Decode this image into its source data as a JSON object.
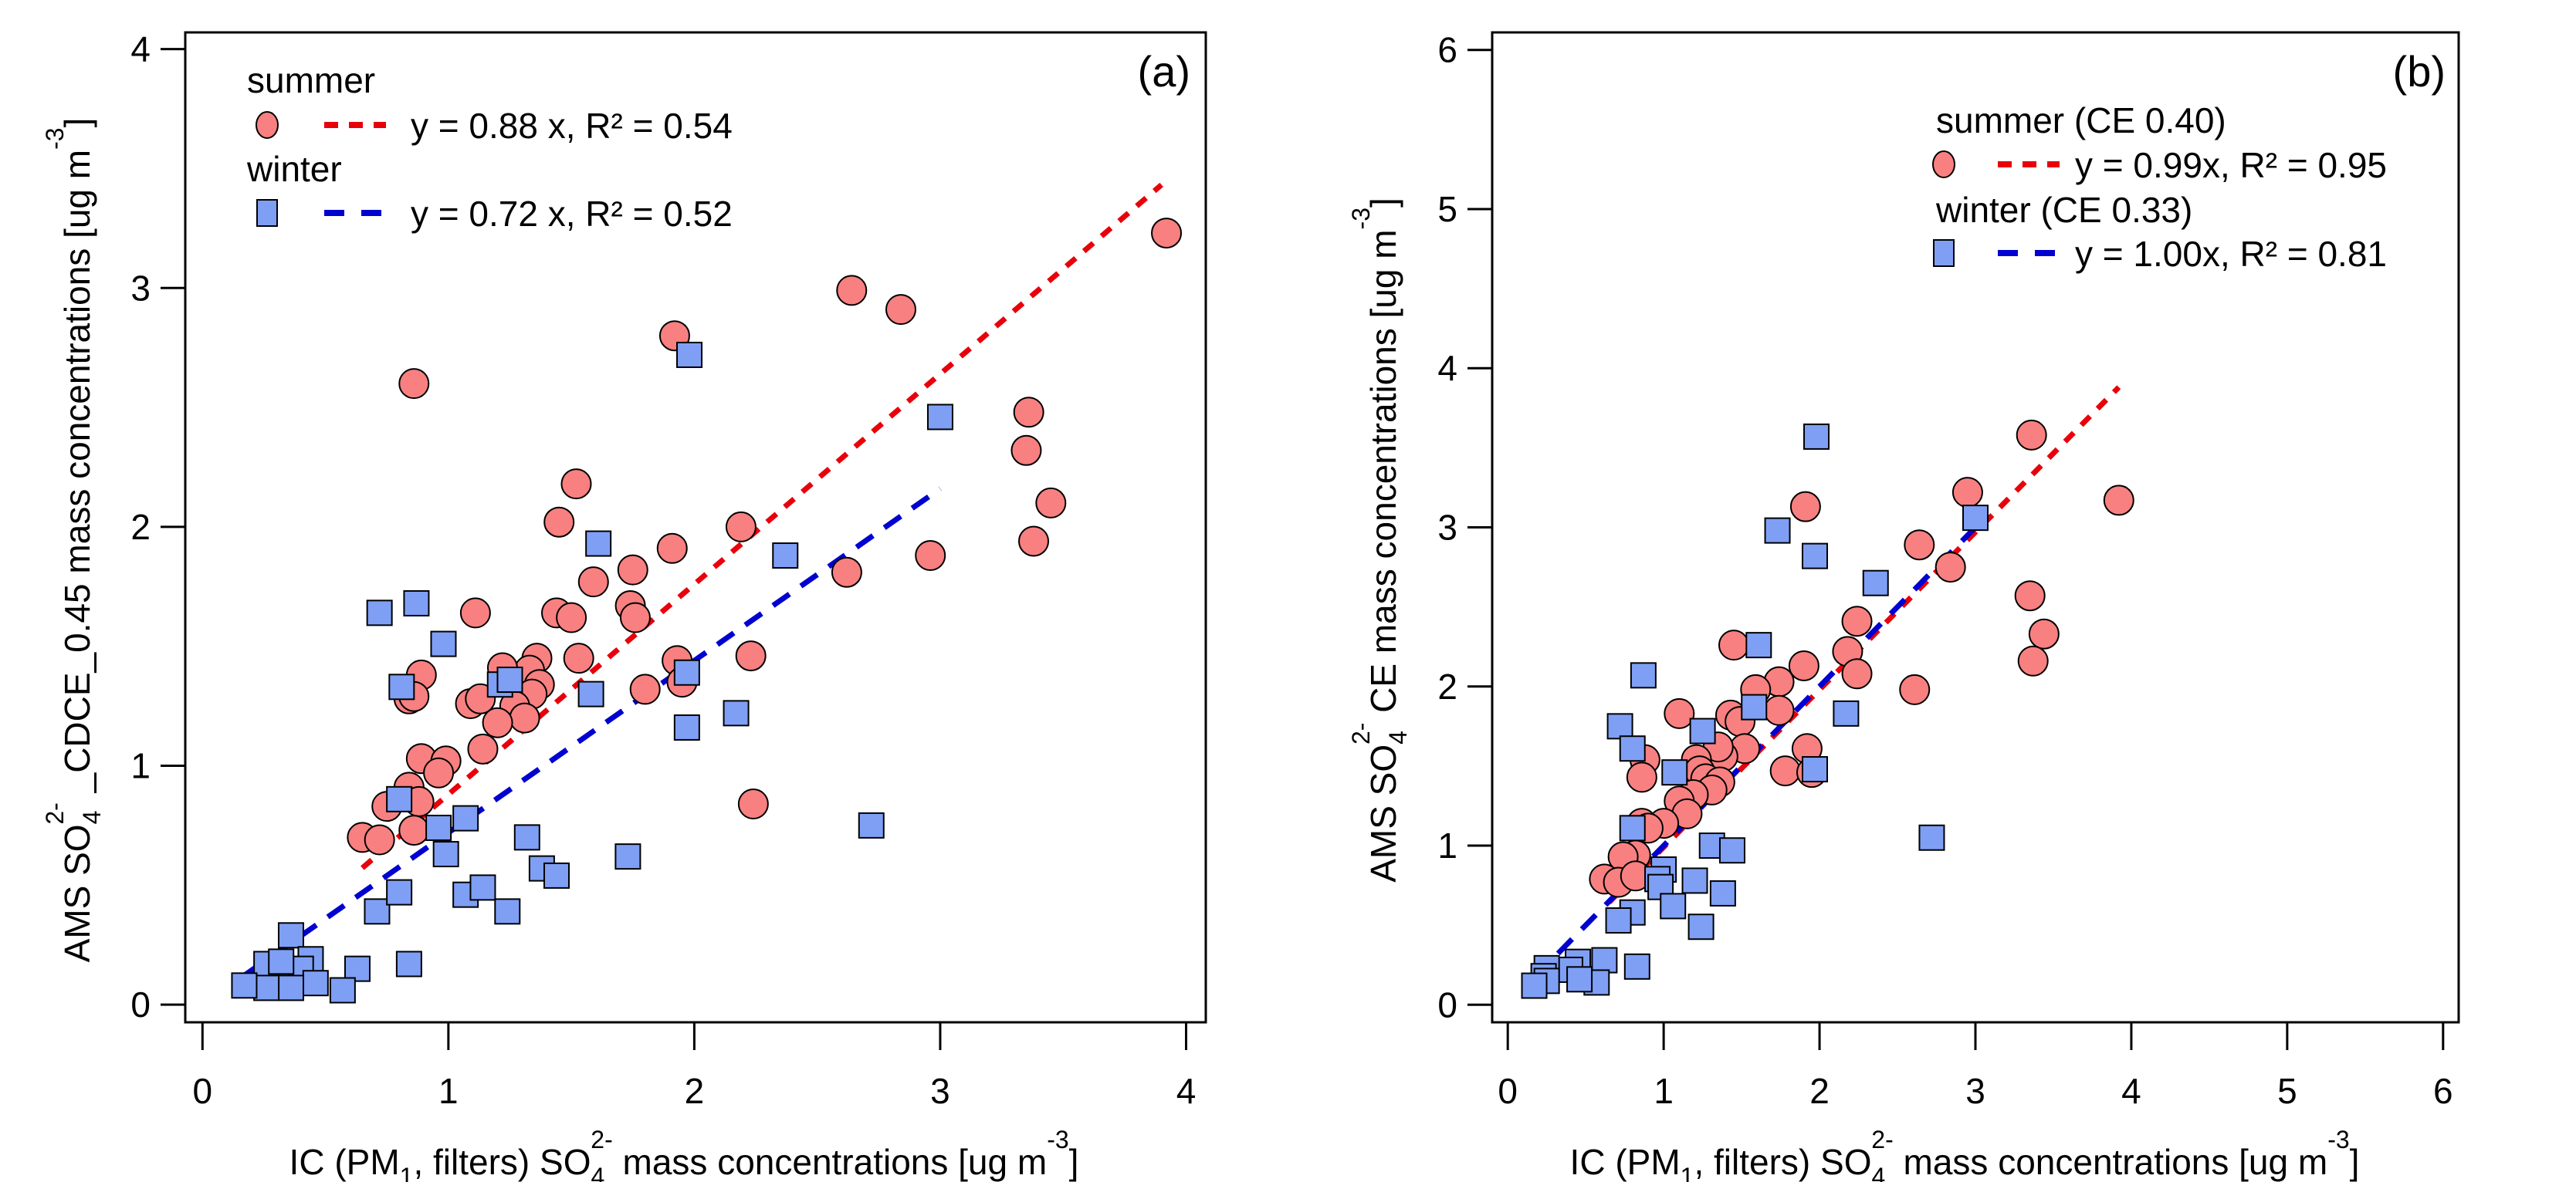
{
  "chart_data": [
    {
      "type": "scatter",
      "panel_label": "(a)",
      "xlabel": [
        {
          "t": "IC (PM",
          "s": "n"
        },
        {
          "t": "1",
          "s": "sub"
        },
        {
          "t": ", filters) SO",
          "s": "n"
        },
        {
          "t": "4",
          "s": "sub"
        },
        {
          "t": "2-",
          "s": "sup"
        },
        {
          "t": " mass concentrations [ug m",
          "s": "n"
        },
        {
          "t": "-3",
          "s": "sup"
        },
        {
          "t": "]",
          "s": "n"
        }
      ],
      "ylabel": [
        {
          "t": "AMS SO",
          "s": "n"
        },
        {
          "t": "4",
          "s": "sub"
        },
        {
          "t": "2-",
          "s": "sup"
        },
        {
          "t": " _CDCE_0.45 mass concentrations [ug m",
          "s": "n"
        },
        {
          "t": "-3",
          "s": "sup"
        },
        {
          "t": "]",
          "s": "n"
        }
      ],
      "xlim": [
        -0.07,
        4.08
      ],
      "ylim": [
        -0.074,
        4.07
      ],
      "xticks": [
        "0",
        "1",
        "2",
        "3",
        "4"
      ],
      "yticks": [
        "0",
        "1",
        "2",
        "3",
        "4"
      ],
      "grid": false,
      "legend_placement": "top-left",
      "series": [
        {
          "name": "summer",
          "marker": "circle",
          "color": "#f88080",
          "fit": {
            "label": "y = 0.88 x, R² = 0.54",
            "slope": 0.88,
            "x_range": [
              0.65,
              3.9
            ],
            "color": "#e8000b",
            "dash": "short"
          },
          "points": [
            [
              3.92,
              3.23
            ],
            [
              2.64,
              2.99
            ],
            [
              2.84,
              2.91
            ],
            [
              1.92,
              2.8
            ],
            [
              0.86,
              2.6
            ],
            [
              3.36,
              2.48
            ],
            [
              3.35,
              2.32
            ],
            [
              3.45,
              2.1
            ],
            [
              3.38,
              1.94
            ],
            [
              2.96,
              1.88
            ],
            [
              2.62,
              1.81
            ],
            [
              1.52,
              2.18
            ],
            [
              1.45,
              2.02
            ],
            [
              2.19,
              2.0
            ],
            [
              1.91,
              1.91
            ],
            [
              1.75,
              1.82
            ],
            [
              1.59,
              1.77
            ],
            [
              1.74,
              1.67
            ],
            [
              1.76,
              1.62
            ],
            [
              1.44,
              1.64
            ],
            [
              1.5,
              1.62
            ],
            [
              1.11,
              1.64
            ],
            [
              1.53,
              1.45
            ],
            [
              1.93,
              1.44
            ],
            [
              1.95,
              1.35
            ],
            [
              2.23,
              1.46
            ],
            [
              1.8,
              1.32
            ],
            [
              1.36,
              1.45
            ],
            [
              1.33,
              1.4
            ],
            [
              1.37,
              1.34
            ],
            [
              1.22,
              1.41
            ],
            [
              1.34,
              1.3
            ],
            [
              1.27,
              1.25
            ],
            [
              1.31,
              1.2
            ],
            [
              1.2,
              1.18
            ],
            [
              1.09,
              1.26
            ],
            [
              1.13,
              1.28
            ],
            [
              0.89,
              1.38
            ],
            [
              0.84,
              1.28
            ],
            [
              0.86,
              1.29
            ],
            [
              1.14,
              1.07
            ],
            [
              0.89,
              1.03
            ],
            [
              0.99,
              1.02
            ],
            [
              0.96,
              0.97
            ],
            [
              0.84,
              0.91
            ],
            [
              0.75,
              0.83
            ],
            [
              0.88,
              0.85
            ],
            [
              0.86,
              0.73
            ],
            [
              0.65,
              0.7
            ],
            [
              0.72,
              0.69
            ],
            [
              2.24,
              0.84
            ]
          ]
        },
        {
          "name": "winter",
          "marker": "square",
          "color": "#7f9ff5",
          "fit": {
            "label": "y = 0.72 x, R² = 0.52",
            "slope": 0.72,
            "x_range": [
              0.17,
              3.0
            ],
            "color": "#0000d0",
            "dash": "long"
          },
          "points": [
            [
              1.98,
              2.72
            ],
            [
              3.0,
              2.46
            ],
            [
              1.61,
              1.93
            ],
            [
              2.37,
              1.88
            ],
            [
              0.72,
              1.64
            ],
            [
              0.87,
              1.68
            ],
            [
              0.98,
              1.51
            ],
            [
              0.81,
              1.33
            ],
            [
              1.21,
              1.34
            ],
            [
              1.25,
              1.36
            ],
            [
              1.58,
              1.3
            ],
            [
              1.97,
              1.39
            ],
            [
              1.97,
              1.16
            ],
            [
              2.17,
              1.22
            ],
            [
              2.72,
              0.75
            ],
            [
              0.8,
              0.86
            ],
            [
              0.96,
              0.74
            ],
            [
              1.07,
              0.78
            ],
            [
              0.99,
              0.63
            ],
            [
              1.32,
              0.7
            ],
            [
              1.38,
              0.57
            ],
            [
              1.44,
              0.54
            ],
            [
              1.73,
              0.62
            ],
            [
              1.07,
              0.46
            ],
            [
              1.14,
              0.49
            ],
            [
              1.24,
              0.39
            ],
            [
              0.71,
              0.39
            ],
            [
              0.8,
              0.47
            ],
            [
              0.84,
              0.17
            ],
            [
              0.36,
              0.29
            ],
            [
              0.63,
              0.15
            ],
            [
              0.57,
              0.06
            ],
            [
              0.26,
              0.17
            ],
            [
              0.44,
              0.19
            ],
            [
              0.4,
              0.15
            ],
            [
              0.46,
              0.09
            ],
            [
              0.36,
              0.07
            ],
            [
              0.26,
              0.07
            ],
            [
              0.17,
              0.08
            ],
            [
              0.32,
              0.18
            ]
          ]
        }
      ]
    },
    {
      "type": "scatter",
      "panel_label": "(b)",
      "xlabel": [
        {
          "t": "IC (PM",
          "s": "n"
        },
        {
          "t": "1",
          "s": "sub"
        },
        {
          "t": ", filters) SO",
          "s": "n"
        },
        {
          "t": "4",
          "s": "sub"
        },
        {
          "t": "2-",
          "s": "sup"
        },
        {
          "t": " mass concentrations [ug m",
          "s": "n"
        },
        {
          "t": "-3",
          "s": "sup"
        },
        {
          "t": "]",
          "s": "n"
        }
      ],
      "ylabel": [
        {
          "t": "AMS SO",
          "s": "n"
        },
        {
          "t": "4",
          "s": "sub"
        },
        {
          "t": "2-",
          "s": "sup"
        },
        {
          "t": " CE mass concentrations [ug m",
          "s": "n"
        },
        {
          "t": "-3",
          "s": "sup"
        },
        {
          "t": "]",
          "s": "n"
        }
      ],
      "xlim": [
        -0.1,
        6.1
      ],
      "ylim": [
        -0.11,
        6.11
      ],
      "xticks": [
        "0",
        "1",
        "2",
        "3",
        "4",
        "5",
        "6"
      ],
      "yticks": [
        "0",
        "1",
        "2",
        "3",
        "4",
        "5",
        "6"
      ],
      "grid": false,
      "legend_placement": "top-right",
      "series": [
        {
          "name": "summer (CE 0.40)",
          "marker": "circle",
          "color": "#f88080",
          "fit": {
            "label": "y = 0.99x, R² = 0.95",
            "slope": 0.99,
            "x_range": [
              0.65,
              3.92
            ],
            "color": "#e8000b",
            "dash": "short"
          },
          "points": [
            [
              3.36,
              3.58
            ],
            [
              3.92,
              3.17
            ],
            [
              2.95,
              3.22
            ],
            [
              1.91,
              3.13
            ],
            [
              2.64,
              2.89
            ],
            [
              2.84,
              2.75
            ],
            [
              3.35,
              2.57
            ],
            [
              3.44,
              2.33
            ],
            [
              3.37,
              2.16
            ],
            [
              2.61,
              1.98
            ],
            [
              2.24,
              2.41
            ],
            [
              2.18,
              2.22
            ],
            [
              2.24,
              2.08
            ],
            [
              1.9,
              2.13
            ],
            [
              1.74,
              2.03
            ],
            [
              1.45,
              2.26
            ],
            [
              1.59,
              1.98
            ],
            [
              1.74,
              1.85
            ],
            [
              1.78,
              1.47
            ],
            [
              1.92,
              1.61
            ],
            [
              1.95,
              1.46
            ],
            [
              1.43,
              1.82
            ],
            [
              1.1,
              1.83
            ],
            [
              1.49,
              1.78
            ],
            [
              1.52,
              1.61
            ],
            [
              1.38,
              1.56
            ],
            [
              1.35,
              1.62
            ],
            [
              1.21,
              1.54
            ],
            [
              1.23,
              1.47
            ],
            [
              1.27,
              1.42
            ],
            [
              1.36,
              1.4
            ],
            [
              1.31,
              1.35
            ],
            [
              1.19,
              1.32
            ],
            [
              1.1,
              1.28
            ],
            [
              1.15,
              1.2
            ],
            [
              0.88,
              1.54
            ],
            [
              0.86,
              1.43
            ],
            [
              1.0,
              1.14
            ],
            [
              0.86,
              1.14
            ],
            [
              0.9,
              1.11
            ],
            [
              0.82,
              0.94
            ],
            [
              0.74,
              0.93
            ],
            [
              0.62,
              0.79
            ],
            [
              0.71,
              0.77
            ],
            [
              0.82,
              0.81
            ]
          ]
        },
        {
          "name": "winter (CE 0.33)",
          "marker": "square",
          "color": "#7f9ff5",
          "fit": {
            "label": "y = 1.00x, R² = 0.81",
            "slope": 1.0,
            "x_range": [
              0.17,
              3.02
            ],
            "color": "#0000d0",
            "dash": "long"
          },
          "points": [
            [
              1.98,
              3.57
            ],
            [
              1.73,
              2.98
            ],
            [
              1.97,
              2.82
            ],
            [
              3.0,
              3.06
            ],
            [
              2.36,
              2.65
            ],
            [
              1.61,
              2.26
            ],
            [
              0.87,
              2.07
            ],
            [
              2.17,
              1.83
            ],
            [
              1.58,
              1.87
            ],
            [
              0.72,
              1.75
            ],
            [
              0.8,
              1.61
            ],
            [
              1.25,
              1.72
            ],
            [
              1.07,
              1.46
            ],
            [
              1.97,
              1.48
            ],
            [
              2.72,
              1.05
            ],
            [
              0.8,
              1.11
            ],
            [
              1.31,
              1.0
            ],
            [
              1.44,
              0.97
            ],
            [
              1.0,
              0.85
            ],
            [
              0.96,
              0.79
            ],
            [
              0.98,
              0.74
            ],
            [
              1.2,
              0.78
            ],
            [
              1.06,
              0.62
            ],
            [
              1.38,
              0.7
            ],
            [
              1.24,
              0.49
            ],
            [
              0.8,
              0.58
            ],
            [
              0.71,
              0.53
            ],
            [
              0.83,
              0.24
            ],
            [
              0.62,
              0.28
            ],
            [
              0.57,
              0.14
            ],
            [
              0.45,
              0.27
            ],
            [
              0.4,
              0.22
            ],
            [
              0.46,
              0.16
            ],
            [
              0.25,
              0.23
            ],
            [
              0.23,
              0.18
            ],
            [
              0.25,
              0.15
            ],
            [
              0.17,
              0.12
            ]
          ]
        }
      ]
    }
  ]
}
